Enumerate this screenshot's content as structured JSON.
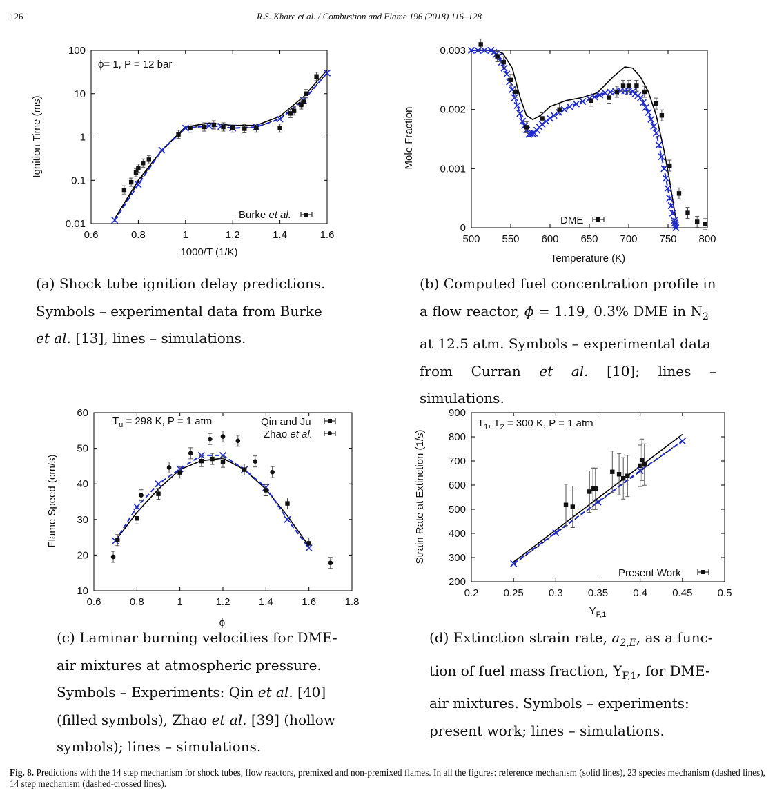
{
  "header": {
    "page_number": "126",
    "running_title": "R.S. Khare et al. / Combustion and Flame 196 (2018) 116–128"
  },
  "colors": {
    "simulation_crossed": "#1f2bd0",
    "reference": "#000000",
    "experiment": "#111111"
  },
  "panels": {
    "a": {
      "caption": "(a) Shock tube ignition delay predictions. Symbols – experimental data from Burke et al. [13], lines – simulations.",
      "chart_data": {
        "type": "scatter",
        "title": "ϕ= 1, P = 12 bar",
        "xlabel": "1000/T (1/K)",
        "ylabel": "Ignition Time (ms)",
        "xlim": [
          0.6,
          1.6
        ],
        "ylim": [
          0.01,
          100
        ],
        "yscale": "log",
        "xticks": [
          "0.6",
          "0.8",
          "1",
          "1.2",
          "1.4",
          "1.6"
        ],
        "yticks": [
          "0.01",
          "0.1",
          "1",
          "10",
          "100"
        ],
        "legend": {
          "label": "Burke et al.",
          "placement": "bottom-right"
        },
        "experiments": [
          [
            0.74,
            0.06
          ],
          [
            0.77,
            0.09
          ],
          [
            0.79,
            0.15
          ],
          [
            0.8,
            0.19
          ],
          [
            0.82,
            0.25
          ],
          [
            0.845,
            0.3
          ],
          [
            0.97,
            1.15
          ],
          [
            1.02,
            1.6
          ],
          [
            1.08,
            1.7
          ],
          [
            1.12,
            1.9
          ],
          [
            1.16,
            1.7
          ],
          [
            1.2,
            1.6
          ],
          [
            1.25,
            1.55
          ],
          [
            1.3,
            1.6
          ],
          [
            1.4,
            1.6
          ],
          [
            1.445,
            3.5
          ],
          [
            1.46,
            4
          ],
          [
            1.49,
            5.5
          ],
          [
            1.5,
            6.5
          ],
          [
            1.51,
            10
          ],
          [
            1.555,
            25
          ]
        ],
        "series": [
          {
            "name": "reference mechanism",
            "style": "solid",
            "points": [
              [
                0.7,
                0.013
              ],
              [
                0.8,
                0.1
              ],
              [
                0.9,
                0.5
              ],
              [
                1.0,
                1.7
              ],
              [
                1.1,
                2.1
              ],
              [
                1.2,
                1.85
              ],
              [
                1.3,
                1.85
              ],
              [
                1.4,
                3.0
              ],
              [
                1.5,
                8.5
              ],
              [
                1.6,
                35
              ]
            ]
          },
          {
            "name": "23 species mechanism",
            "style": "dashed",
            "points": [
              [
                0.7,
                0.012
              ],
              [
                0.8,
                0.09
              ],
              [
                0.9,
                0.48
              ],
              [
                1.0,
                1.6
              ],
              [
                1.1,
                1.85
              ],
              [
                1.2,
                1.6
              ],
              [
                1.3,
                1.65
              ],
              [
                1.4,
                2.7
              ],
              [
                1.5,
                7.5
              ],
              [
                1.6,
                30
              ]
            ]
          },
          {
            "name": "14 step mechanism",
            "style": "dashed-crossed",
            "points": [
              [
                0.7,
                0.012
              ],
              [
                0.8,
                0.08
              ],
              [
                0.9,
                0.5
              ],
              [
                1.0,
                1.6
              ],
              [
                1.1,
                1.8
              ],
              [
                1.15,
                1.75
              ],
              [
                1.2,
                1.6
              ],
              [
                1.3,
                1.7
              ],
              [
                1.4,
                2.6
              ],
              [
                1.5,
                7
              ],
              [
                1.6,
                30
              ]
            ]
          }
        ]
      }
    },
    "b": {
      "caption": "(b) Computed fuel concentration profile in a flow reactor, ϕ = 1.19, 0.3% DME in N₂ at 12.5 atm. Symbols – experimental data from Curran et al. [10]; lines – simulations.",
      "chart_data": {
        "type": "scatter",
        "xlabel": "Temperature (K)",
        "ylabel": "Mole Fraction",
        "xlim": [
          500,
          800
        ],
        "ylim": [
          0,
          0.003
        ],
        "xticks": [
          "500",
          "550",
          "600",
          "650",
          "700",
          "750",
          "800"
        ],
        "yticks": [
          "0",
          "0.001",
          "0.002",
          "0.003"
        ],
        "legend": {
          "label": "DME",
          "placement": "bottom-center"
        },
        "experiments": [
          [
            512,
            0.0031
          ],
          [
            533,
            0.0029
          ],
          [
            541,
            0.0028
          ],
          [
            550,
            0.0025
          ],
          [
            556,
            0.0023
          ],
          [
            570,
            0.0017
          ],
          [
            590,
            0.00185
          ],
          [
            612,
            0.002
          ],
          [
            652,
            0.00215
          ],
          [
            675,
            0.0022
          ],
          [
            685,
            0.0023
          ],
          [
            693,
            0.0024
          ],
          [
            700,
            0.0024
          ],
          [
            710,
            0.0024
          ],
          [
            720,
            0.0023
          ],
          [
            735,
            0.0021
          ],
          [
            742,
            0.0019
          ],
          [
            752,
            0.00105
          ],
          [
            764,
            0.00058
          ],
          [
            775,
            0.00025
          ],
          [
            787,
            0.0001
          ],
          [
            797,
            6e-05
          ]
        ],
        "series": [
          {
            "name": "reference mechanism",
            "style": "solid",
            "points": [
              [
                500,
                0.003
              ],
              [
                530,
                0.003
              ],
              [
                540,
                0.00295
              ],
              [
                552,
                0.0027
              ],
              [
                562,
                0.0022
              ],
              [
                570,
                0.0019
              ],
              [
                578,
                0.00183
              ],
              [
                588,
                0.0019
              ],
              [
                600,
                0.00205
              ],
              [
                620,
                0.00215
              ],
              [
                640,
                0.0022
              ],
              [
                660,
                0.00228
              ],
              [
                680,
                0.00255
              ],
              [
                695,
                0.00272
              ],
              [
                705,
                0.0027
              ],
              [
                715,
                0.00255
              ],
              [
                725,
                0.0023
              ],
              [
                735,
                0.0019
              ],
              [
                745,
                0.0013
              ],
              [
                752,
                0.0008
              ],
              [
                758,
                0.0003
              ],
              [
                762,
                0
              ]
            ]
          },
          {
            "name": "14 step mechanism",
            "style": "dashed-crossed",
            "points": [
              [
                500,
                0.003
              ],
              [
                525,
                0.003
              ],
              [
                535,
                0.0029
              ],
              [
                545,
                0.0026
              ],
              [
                555,
                0.0022
              ],
              [
                565,
                0.0018
              ],
              [
                573,
                0.00158
              ],
              [
                580,
                0.0016
              ],
              [
                590,
                0.00175
              ],
              [
                605,
                0.0019
              ],
              [
                625,
                0.00205
              ],
              [
                650,
                0.00218
              ],
              [
                670,
                0.00228
              ],
              [
                690,
                0.00232
              ],
              [
                705,
                0.0023
              ],
              [
                715,
                0.0022
              ],
              [
                725,
                0.00195
              ],
              [
                735,
                0.0016
              ],
              [
                745,
                0.001
              ],
              [
                752,
                0.0005
              ],
              [
                758,
                0.00012
              ],
              [
                760,
                0
              ]
            ]
          }
        ]
      }
    },
    "c": {
      "caption": "(c) Laminar burning velocities for DME-air mixtures at atmospheric pressure. Symbols – Experiments: Qin et al. [40] (filled symbols), Zhao et al. [39] (hollow symbols); lines – simulations.",
      "chart_data": {
        "type": "scatter",
        "title": "Tu = 298 K, P = 1 atm",
        "xlabel": "ϕ",
        "ylabel": "Flame Speed (cm/s)",
        "xlim": [
          0.6,
          1.8
        ],
        "ylim": [
          10,
          60
        ],
        "xticks": [
          "0.6",
          "0.8",
          "1",
          "1.2",
          "1.4",
          "1.6",
          "1.8"
        ],
        "yticks": [
          "10",
          "20",
          "30",
          "40",
          "50",
          "60"
        ],
        "legend": {
          "entries": [
            "Qin and Ju",
            "Zhao et al."
          ],
          "placement": "top-right"
        },
        "qin_and_ju": [
          [
            0.71,
            24.2
          ],
          [
            0.8,
            30.3
          ],
          [
            0.9,
            37.2
          ],
          [
            1.0,
            43.2
          ],
          [
            1.1,
            46.4
          ],
          [
            1.15,
            47
          ],
          [
            1.2,
            46.2
          ],
          [
            1.3,
            44
          ],
          [
            1.4,
            38.2
          ],
          [
            1.5,
            34.5
          ],
          [
            1.6,
            23.3
          ]
        ],
        "zhao_et_al": [
          [
            0.69,
            19.5
          ],
          [
            0.82,
            36.8
          ],
          [
            0.95,
            44.6
          ],
          [
            1.05,
            48.6
          ],
          [
            1.14,
            52.6
          ],
          [
            1.2,
            53.3
          ],
          [
            1.27,
            52.1
          ],
          [
            1.35,
            46.3
          ],
          [
            1.43,
            43.3
          ],
          [
            1.7,
            17.8
          ]
        ],
        "series": [
          {
            "name": "reference mechanism",
            "style": "solid",
            "points": [
              [
                0.7,
                24
              ],
              [
                0.8,
                32
              ],
              [
                0.9,
                38.5
              ],
              [
                1.0,
                44
              ],
              [
                1.1,
                46.5
              ],
              [
                1.2,
                47.2
              ],
              [
                1.3,
                44
              ],
              [
                1.4,
                38.5
              ],
              [
                1.5,
                31
              ],
              [
                1.6,
                22.5
              ]
            ]
          },
          {
            "name": "14 step mechanism",
            "style": "dashed-crossed",
            "points": [
              [
                0.7,
                24
              ],
              [
                0.8,
                33.5
              ],
              [
                0.9,
                40
              ],
              [
                1.0,
                44.2
              ],
              [
                1.1,
                48
              ],
              [
                1.2,
                48
              ],
              [
                1.3,
                44
              ],
              [
                1.4,
                39
              ],
              [
                1.5,
                30
              ],
              [
                1.6,
                22
              ]
            ]
          }
        ]
      }
    },
    "d": {
      "caption": "(d) Extinction strain rate, a2,E, as a function of fuel mass fraction, YF,1, for DME-air mixtures. Symbols – experiments: present work; lines – simulations.",
      "chart_data": {
        "type": "scatter",
        "title": "T1, T2 = 300 K, P = 1 atm",
        "xlabel": "YF,1",
        "ylabel": "Strain Rate at Extinction (1/s)",
        "xlim": [
          0.2,
          0.5
        ],
        "ylim": [
          200,
          900
        ],
        "xticks": [
          "0.2",
          "0.25",
          "0.3",
          "0.35",
          "0.4",
          "0.45",
          "0.5"
        ],
        "yticks": [
          "200",
          "300",
          "400",
          "500",
          "600",
          "700",
          "800",
          "900"
        ],
        "legend": {
          "label": "Present Work",
          "placement": "bottom-right"
        },
        "experiments": [
          [
            0.312,
            518
          ],
          [
            0.32,
            510
          ],
          [
            0.34,
            573
          ],
          [
            0.344,
            585
          ],
          [
            0.347,
            585
          ],
          [
            0.367,
            655
          ],
          [
            0.375,
            645
          ],
          [
            0.38,
            628
          ],
          [
            0.385,
            638
          ],
          [
            0.4,
            680
          ],
          [
            0.402,
            705
          ],
          [
            0.405,
            685
          ]
        ],
        "series": [
          {
            "name": "reference mechanism",
            "style": "solid",
            "points": [
              [
                0.25,
                282
              ],
              [
                0.45,
                810
              ]
            ]
          },
          {
            "name": "23 species mechanism",
            "style": "dashed",
            "points": [
              [
                0.25,
                272
              ],
              [
                0.45,
                785
              ]
            ]
          },
          {
            "name": "14 step mechanism",
            "style": "dashed-crossed",
            "points": [
              [
                0.25,
                275
              ],
              [
                0.3,
                403
              ],
              [
                0.35,
                530
              ],
              [
                0.4,
                660
              ],
              [
                0.45,
                782
              ]
            ]
          }
        ]
      }
    }
  },
  "figure_caption": {
    "label": "Fig. 8.",
    "text": "Predictions with the 14 step mechanism for shock tubes, flow reactors, premixed and non-premixed flames. In all the figures: reference mechanism (solid lines), 23 species mechanism (dashed lines), 14 step mechanism (dashed-crossed lines)."
  }
}
